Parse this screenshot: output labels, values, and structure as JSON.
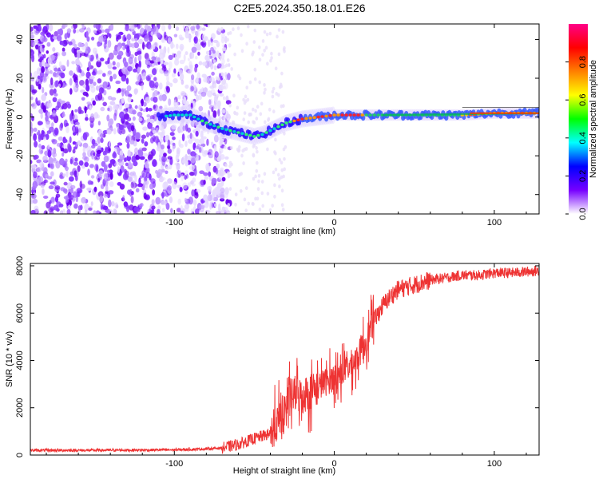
{
  "title": "C2E5.2024.350.18.01.E26",
  "chart_data": [
    {
      "type": "heatmap",
      "name": "spectrogram",
      "xlabel": "Height of straight line (km)",
      "ylabel": "Frequency (Hz)",
      "xlim": [
        -190,
        128
      ],
      "ylim": [
        -50,
        48
      ],
      "xticks": [
        -100,
        0,
        100
      ],
      "xtick_labels": [
        "-100",
        "0",
        "100"
      ],
      "yticks": [
        -40,
        -20,
        0,
        20,
        40
      ],
      "ytick_labels": [
        "-40",
        "-20",
        "0",
        "20",
        "40"
      ],
      "colorbar": {
        "label": "Normalized spectral amplitude",
        "range": [
          0,
          1
        ],
        "ticks": [
          0.0,
          0.2,
          0.4,
          0.6,
          0.8
        ],
        "tick_labels": [
          "0.0",
          "0.2",
          "0.4",
          "0.6",
          "0.8"
        ],
        "colors": [
          "#ffffff",
          "#7700ff",
          "#0000ff",
          "#00ffff",
          "#00ff00",
          "#ffff00",
          "#ff8000",
          "#ff0000",
          "#ff0088"
        ]
      },
      "ridge": {
        "x": [
          -110,
          -100,
          -90,
          -80,
          -70,
          -60,
          -50,
          -45,
          -40,
          -35,
          -30,
          -20,
          -10,
          0,
          10,
          20,
          40,
          60,
          80,
          100,
          128
        ],
        "y": [
          0,
          1,
          1,
          -3,
          -6,
          -8,
          -10,
          -9,
          -7,
          -5,
          -3,
          -1,
          0,
          1,
          1,
          1,
          1,
          1,
          1,
          2,
          2
        ]
      }
    },
    {
      "type": "line",
      "name": "snr",
      "xlabel": "Height of straight line (km)",
      "ylabel": "SNR (10 * v/v)",
      "xlim": [
        -190,
        128
      ],
      "ylim": [
        0,
        8100
      ],
      "xticks": [
        -100,
        0,
        100
      ],
      "xtick_labels": [
        "-100",
        "0",
        "100"
      ],
      "yticks": [
        0,
        2000,
        4000,
        6000,
        8000
      ],
      "ytick_labels": [
        "0",
        "2000",
        "4000",
        "6000",
        "8000"
      ],
      "series": [
        {
          "name": "SNR",
          "color": "#ee3333",
          "x": [
            -190,
            -150,
            -100,
            -80,
            -70,
            -60,
            -50,
            -40,
            -35,
            -30,
            -25,
            -20,
            -15,
            -10,
            -5,
            0,
            5,
            10,
            15,
            20,
            25,
            30,
            35,
            40,
            50,
            60,
            70,
            80,
            90,
            100,
            110,
            120,
            128
          ],
          "y": [
            200,
            200,
            220,
            260,
            300,
            450,
            700,
            900,
            1400,
            2100,
            2600,
            2500,
            2700,
            2900,
            3100,
            3300,
            3500,
            3800,
            4200,
            4900,
            5700,
            6300,
            6700,
            7000,
            7200,
            7400,
            7500,
            7600,
            7600,
            7700,
            7700,
            7750,
            7800
          ]
        }
      ]
    }
  ]
}
